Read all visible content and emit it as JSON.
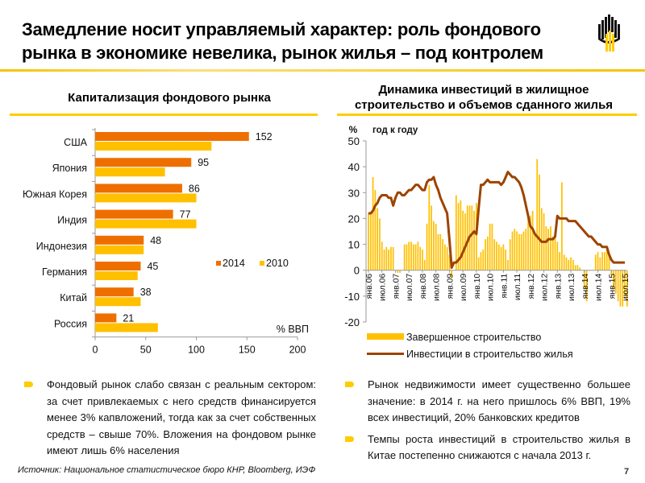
{
  "header": {
    "title_line1": "Замедление носит управляемый характер: роль фондового",
    "title_line2": "рынка в экономике невелика, рынок жилья – под контролем",
    "logo": "rosneft-logo"
  },
  "colors": {
    "orange": "#ee6f00",
    "yellow": "#ffc000",
    "brown": "#9c4400",
    "rule": "#ffcc00"
  },
  "chart_data": [
    {
      "type": "bar",
      "orientation": "horizontal",
      "title": "Капитализация фондового рынка",
      "categories": [
        "США",
        "Япония",
        "Южная Корея",
        "Индия",
        "Индонезия",
        "Германия",
        "Китай",
        "Россия"
      ],
      "series": [
        {
          "name": "2014",
          "values": [
            152,
            95,
            86,
            77,
            48,
            45,
            38,
            21
          ]
        },
        {
          "name": "2010",
          "values": [
            115,
            69,
            100,
            100,
            48,
            42,
            45,
            62
          ]
        }
      ],
      "data_labels": [
        "152",
        "95",
        "86",
        "77",
        "48",
        "45",
        "38",
        "21"
      ],
      "xlim": [
        0,
        200
      ],
      "xticks": [
        "0",
        "50",
        "100",
        "150",
        "200"
      ],
      "unit_label": "% ВВП",
      "legend": [
        "2014",
        "2010"
      ],
      "legend_position": "right-center"
    },
    {
      "type": "bar+line",
      "title_line1": "Динамика инвестиций в жилищное",
      "title_line2": "строительство и объемов сданного жилья",
      "yunit": "%",
      "ylabel": "год к году",
      "ylim": [
        -20,
        50
      ],
      "yticks": [
        "50",
        "40",
        "30",
        "20",
        "10",
        "0",
        "-10",
        "-20"
      ],
      "xticks": [
        "янв.06",
        "июл.06",
        "янв.07",
        "июл.07",
        "янв.08",
        "июл.08",
        "янв.09",
        "июл.09",
        "янв.10",
        "июл.10",
        "янв.11",
        "июл.11",
        "янв.12",
        "июл.12",
        "янв.13",
        "июл.13",
        "янв.14",
        "июл.14",
        "янв.15",
        "июл.15"
      ],
      "x_start": "янв.06",
      "x_end": "июл.15",
      "legend": [
        "Завершенное строительство",
        "Инвестиции в строительство жилья"
      ],
      "legend_position": "bottom",
      "series": [
        {
          "name": "Завершенное строительство",
          "kind": "bar",
          "values": [
            22,
            22,
            36,
            31,
            24,
            20,
            11,
            8,
            9,
            8,
            9,
            9,
            0,
            -1,
            -1,
            0,
            10,
            10,
            11,
            11,
            10,
            10,
            11,
            9,
            8,
            4,
            18,
            33,
            25,
            19,
            18,
            14,
            14,
            12,
            10,
            9,
            6,
            -3,
            0,
            29,
            26,
            27,
            23,
            22,
            25,
            25,
            25,
            23,
            26,
            5,
            7,
            8,
            12,
            13,
            18,
            18,
            12,
            11,
            10,
            9,
            10,
            8,
            4,
            12,
            15,
            16,
            15,
            14,
            14,
            15,
            16,
            20,
            21,
            23,
            14,
            43,
            37,
            24,
            22,
            17,
            16,
            17,
            13,
            14,
            11,
            7,
            34,
            6,
            5,
            4,
            5,
            4,
            2,
            2,
            1,
            0,
            -7,
            -12,
            0,
            0,
            0,
            6,
            7,
            5,
            7,
            7,
            8,
            6,
            -2,
            -7,
            -9,
            -12,
            -14,
            -14,
            -10,
            -14
          ],
          "trend_note": "monthly yoy, янв.06–июл.15"
        },
        {
          "name": "Инвестиции в строительство жилья",
          "kind": "line",
          "values": [
            22,
            22,
            23,
            25,
            26,
            28,
            29,
            29,
            29,
            28,
            28,
            25,
            28,
            30,
            30,
            29,
            29,
            30,
            31,
            31,
            32,
            33,
            33,
            32,
            31,
            31,
            34,
            35,
            35,
            36,
            33,
            31,
            28,
            26,
            24,
            22,
            12,
            1,
            3,
            3,
            4,
            5,
            7,
            9,
            11,
            13,
            14,
            15,
            14,
            24,
            33,
            33,
            34,
            35,
            34,
            34,
            34,
            34,
            34,
            33,
            34,
            36,
            38,
            37,
            36,
            36,
            35,
            34,
            32,
            29,
            25,
            21,
            17,
            16,
            14,
            13,
            12,
            11,
            11,
            11,
            12,
            12,
            12,
            13,
            21,
            20,
            20,
            20,
            20,
            19,
            19,
            19,
            19,
            18,
            17,
            16,
            15,
            14,
            13,
            13,
            12,
            11,
            10,
            10,
            9,
            9,
            9,
            6,
            4,
            3,
            3,
            3,
            3,
            3,
            3
          ]
        }
      ]
    }
  ],
  "bullets_left": [
    "Фондовый рынок слабо связан с реальным сектором: за счет привлекаемых с него средств финансируется менее 3% капвложений, тогда как за счет собственных средств – свыше 70%. Вложения на фондовом рынке имеют лишь 6% населения"
  ],
  "bullets_right": [
    "Рынок недвижимости имеет существенно большее значение: в 2014 г. на него пришлось 6% ВВП, 19% всех инвестиций, 20% банковских кредитов",
    "Темпы роста инвестиций в строительство жилья в Китае постепенно снижаются с начала 2013 г."
  ],
  "footer": {
    "source": "Источник: Национальное статистическое бюро КНР, Bloomberg, ИЭФ",
    "page_number": "7"
  }
}
